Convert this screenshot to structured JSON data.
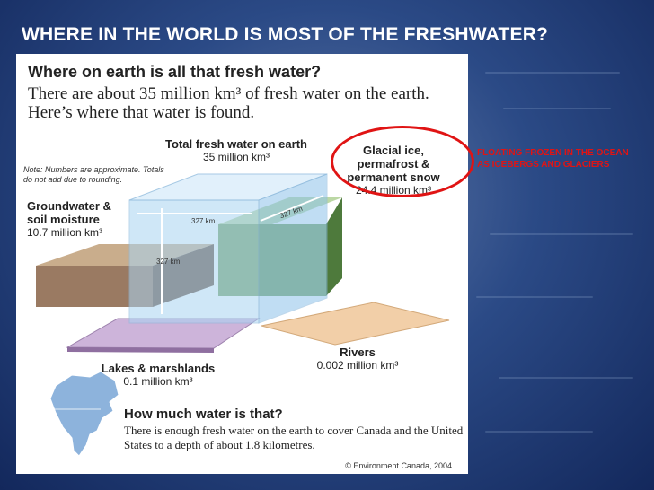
{
  "slide": {
    "title": "WHERE IN THE WORLD IS MOST OF THE FRESHWATER?",
    "side_note": "FLOATING FROZEN IN THE OCEAN AS ICEBERGS AND GLACIERS"
  },
  "infographic": {
    "heading": "Where on earth is all that fresh water?",
    "subheading": "There are about 35 million km³ of fresh water on the earth. Here’s where that water is found.",
    "note": "Note: Numbers are approximate. Totals do not add due to rounding.",
    "total": {
      "label": "Total fresh water on earth",
      "value": "35 million km³"
    },
    "glacial": {
      "label": "Glacial ice, permafrost & permanent snow",
      "value": "24.4 million km³"
    },
    "groundwater": {
      "label": "Groundwater & soil moisture",
      "value": "10.7 million km³"
    },
    "lakes": {
      "label": "Lakes & marshlands",
      "value": "0.1 million km³"
    },
    "rivers": {
      "label": "Rivers",
      "value": "0.002 million km³"
    },
    "dimension_label": "327 km",
    "howmuch_title": "How much water is that?",
    "howmuch_body": "There is enough fresh water on the earth to cover Canada and the United States to a depth of about 1.8 kilometres.",
    "copyright": "© Environment Canada, 2004"
  },
  "colors": {
    "accent_red": "#e01414",
    "glacial_green": "#6f8f55",
    "total_blue": "#a9d4f2",
    "groundwater_brown": "#9a7a62",
    "lakes_purple": "#c9b0d6",
    "rivers_peach": "#f2cfa8"
  }
}
